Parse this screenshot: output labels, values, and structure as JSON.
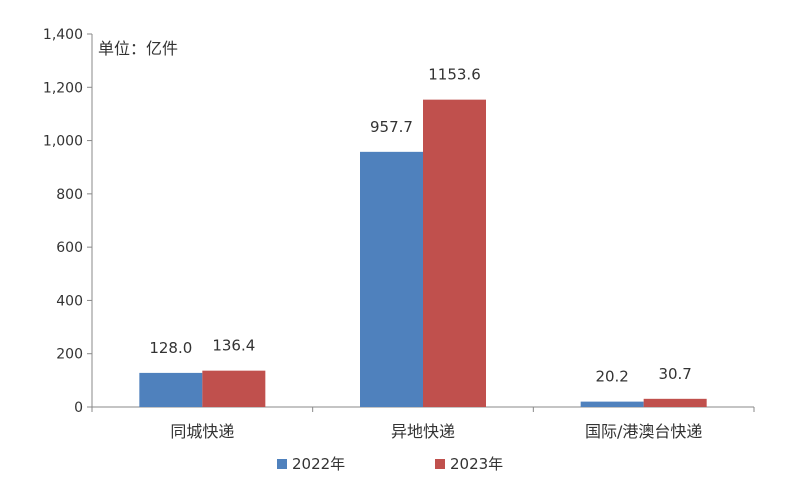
{
  "chart_data": {
    "type": "bar",
    "unit_label": "单位：亿件",
    "categories": [
      "同城快递",
      "异地快递",
      "国际/港澳台快递"
    ],
    "series": [
      {
        "name": "2022年",
        "values": [
          128.0,
          957.7,
          20.2
        ],
        "labels": [
          "128.0",
          "957.7",
          "20.2"
        ],
        "color": "#4F81BD"
      },
      {
        "name": "2023年",
        "values": [
          136.4,
          1153.6,
          30.7
        ],
        "labels": [
          "136.4",
          "1153.6",
          "30.7"
        ],
        "color": "#C0504D"
      }
    ],
    "ylim": [
      0,
      1400
    ],
    "yticks": [
      0,
      200,
      400,
      600,
      800,
      1000,
      1200,
      1400
    ],
    "ytick_labels": [
      "0",
      "200",
      "400",
      "600",
      "800",
      "1,000",
      "1,200",
      "1,400"
    ],
    "legend_position": "bottom",
    "grid": false
  }
}
